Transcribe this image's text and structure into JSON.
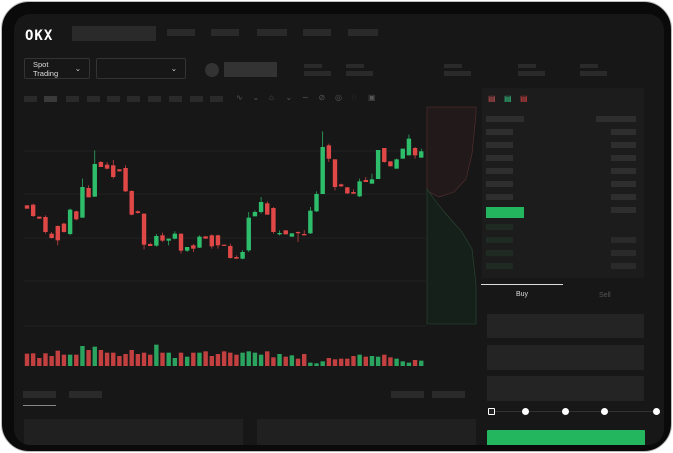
{
  "header": {
    "logo": "OKX"
  },
  "toolbar": {
    "market_select": "Spot Trading",
    "pair_select": ""
  },
  "colors": {
    "up": "#2ebd6b",
    "down": "#e04848",
    "accent": "#24b55f",
    "background": "#171717"
  },
  "trade": {
    "buy_tab": "Buy",
    "sell_tab": "Sell"
  },
  "icons": {
    "chevron": "chevron-down-icon",
    "orderbook_modes": [
      "orderbook-both-icon",
      "orderbook-bids-icon",
      "orderbook-asks-icon"
    ]
  },
  "chart_data": {
    "type": "candlestick",
    "candles": [
      [
        35,
        34,
        35,
        34
      ],
      [
        35.2,
        31.8,
        35.5,
        31.5
      ],
      [
        31.6,
        31,
        31.6,
        31
      ],
      [
        31.5,
        27,
        32,
        26.5
      ],
      [
        26.5,
        25.2,
        27,
        25
      ],
      [
        28.8,
        24.5,
        29,
        23
      ],
      [
        29.5,
        27,
        29.8,
        26.8
      ],
      [
        26.4,
        33.7,
        26,
        34
      ],
      [
        33.2,
        30.8,
        33.4,
        30.5
      ],
      [
        31.3,
        40.5,
        31.3,
        43
      ],
      [
        40.2,
        37.4,
        41,
        37.4
      ],
      [
        37.6,
        47.4,
        37.6,
        51.5
      ],
      [
        48,
        46.5,
        48.3,
        46.5
      ],
      [
        47.2,
        46,
        48,
        45.8
      ],
      [
        47,
        43.5,
        48.6,
        43
      ],
      [
        45.8,
        45.2,
        45.8,
        45.2
      ],
      [
        46.2,
        39.2,
        47,
        39
      ],
      [
        39.3,
        32.2,
        39.5,
        32
      ],
      [
        33.2,
        32.7,
        33.5,
        32.5
      ],
      [
        32.5,
        23.2,
        32.6,
        21.8
      ],
      [
        23.4,
        22.8,
        23.8,
        22.8
      ],
      [
        22.9,
        25.8,
        22.6,
        26.4
      ],
      [
        26,
        24.4,
        26.8,
        24
      ],
      [
        24.4,
        25,
        23,
        25
      ],
      [
        25,
        26.5,
        24.8,
        27.2
      ],
      [
        26.5,
        21.4,
        26.6,
        20.5
      ],
      [
        21.4,
        22.5,
        21,
        22.5
      ],
      [
        23,
        22,
        23.4,
        21
      ],
      [
        22.3,
        25.6,
        22.2,
        26
      ],
      [
        25.7,
        25,
        25.7,
        25
      ],
      [
        26,
        22.7,
        26.3,
        22
      ],
      [
        26,
        23,
        26.2,
        22
      ],
      [
        23.2,
        23,
        23.2,
        23
      ],
      [
        22.8,
        19.2,
        23.5,
        19
      ],
      [
        19.5,
        19,
        20,
        19
      ],
      [
        19,
        21,
        18.8,
        21.6
      ],
      [
        21.5,
        31.3,
        21,
        33
      ],
      [
        31.7,
        33,
        31.7,
        33.5
      ],
      [
        33,
        36,
        32.5,
        37.5
      ],
      [
        35.6,
        32.2,
        36.2,
        32.2
      ],
      [
        34.2,
        27,
        34.5,
        26.5
      ],
      [
        26.3,
        26.7,
        26,
        27.5
      ],
      [
        27.5,
        26.3,
        27.5,
        26.3
      ],
      [
        25.6,
        26.6,
        25.6,
        26.6
      ],
      [
        27,
        26.8,
        27.2,
        24
      ],
      [
        26.4,
        26,
        27.5,
        26
      ],
      [
        26.6,
        33.4,
        26.4,
        34.5
      ],
      [
        33.2,
        38.4,
        33,
        39.2
      ],
      [
        38.4,
        52.5,
        38.4,
        57.2
      ],
      [
        53,
        49,
        53.5,
        48
      ],
      [
        48.8,
        40.5,
        48.8,
        39.5
      ],
      [
        41.3,
        40.7,
        41.5,
        40.5
      ],
      [
        40.4,
        38.6,
        40.5,
        38.4
      ],
      [
        39,
        38.5,
        39.8,
        38.4
      ],
      [
        37.7,
        42.2,
        37.5,
        43
      ],
      [
        42.6,
        42,
        43.5,
        42
      ],
      [
        41.5,
        42.8,
        41.5,
        44.5
      ],
      [
        42.9,
        51.6,
        42.9,
        51.6
      ],
      [
        52.2,
        48,
        52.2,
        47.8
      ],
      [
        48.2,
        46.7,
        48.2,
        46.7
      ],
      [
        46,
        48.8,
        46,
        49
      ],
      [
        49,
        52,
        49,
        51.5
      ],
      [
        50,
        55,
        50,
        56.2
      ],
      [
        52.2,
        50,
        52.5,
        49
      ],
      [
        49.3,
        51.2,
        49.3,
        52
      ]
    ],
    "volume": [
      37,
      38,
      24,
      38,
      30,
      46,
      34,
      34,
      34,
      60,
      48,
      58,
      48,
      40,
      40,
      30,
      36,
      48,
      36,
      40,
      34,
      64,
      40,
      40,
      24,
      40,
      28,
      40,
      40,
      44,
      30,
      36,
      44,
      40,
      34,
      40,
      44,
      40,
      34,
      44,
      26,
      36,
      28,
      32,
      22,
      36,
      10,
      8,
      14,
      24,
      20,
      22,
      22,
      30,
      34,
      28,
      30,
      28,
      34,
      26,
      22,
      14,
      10,
      18,
      16
    ],
    "grid": true
  }
}
